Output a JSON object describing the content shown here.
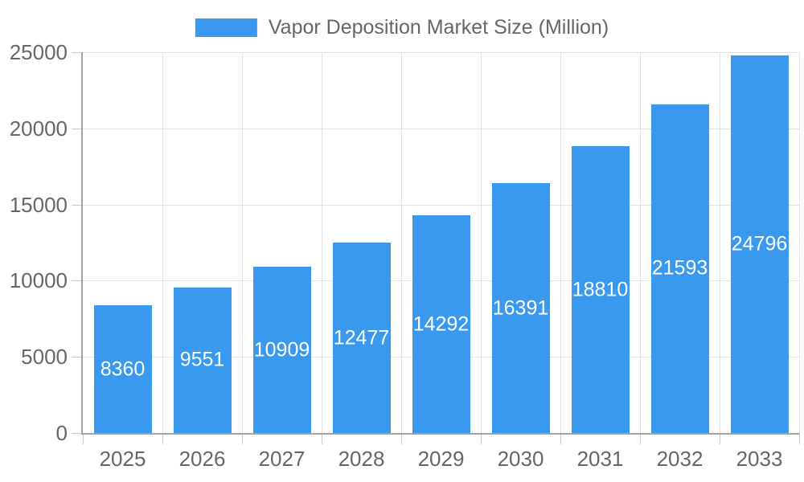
{
  "chart_data": {
    "type": "bar",
    "title": "Vapor Deposition Market Size (Million)",
    "categories": [
      "2025",
      "2026",
      "2027",
      "2028",
      "2029",
      "2030",
      "2031",
      "2032",
      "2033"
    ],
    "series": [
      {
        "name": "Vapor Deposition Market Size (Million)",
        "values": [
          8360,
          9551,
          10909,
          12477,
          14292,
          16391,
          18810,
          21593,
          24796
        ]
      }
    ],
    "value_labels": [
      "8360",
      "9551",
      "10909",
      "12477",
      "14292",
      "16391",
      "18810",
      "21593",
      "24796"
    ],
    "ytick_labels": [
      "0",
      "5000",
      "10000",
      "15000",
      "20000",
      "25000"
    ],
    "xlabel": "",
    "ylabel": "",
    "ylim": [
      0,
      25000
    ],
    "ytick_step": 5000,
    "grid": true,
    "legend_position": "top-center",
    "value_label_position": "inside-center",
    "colors": {
      "bar": "#3999EE",
      "grid": "#E3E3E3",
      "axis": "#A3A3A3",
      "tick": "#C9C9C9",
      "text": "#666666",
      "value_text": "#FFFFFF",
      "background": "#FFFFFF"
    }
  }
}
